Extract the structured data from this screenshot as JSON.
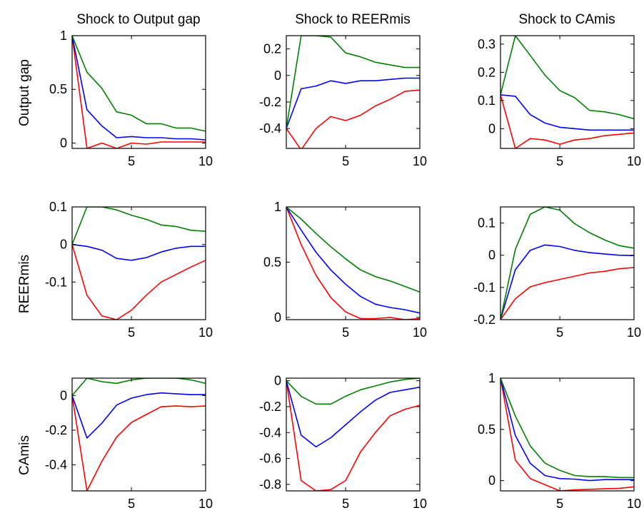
{
  "figure": {
    "column_titles": [
      "Shock to Output gap",
      "Shock to REERmis",
      "Shock to CAmis"
    ],
    "row_labels": [
      "Output gap",
      "REERmis",
      "CAmis"
    ]
  },
  "colors": {
    "lower_band": "#ff0000",
    "median": "#0000ff",
    "upper_band": "#008000",
    "axes": "#000000",
    "background": "#ffffff"
  },
  "chart_data": [
    {
      "type": "line",
      "row": "Output gap",
      "column": "Shock to Output gap",
      "x": [
        1,
        2,
        3,
        4,
        5,
        6,
        7,
        8,
        9,
        10
      ],
      "xlim": [
        1,
        10
      ],
      "xticks": [
        5,
        10
      ],
      "ylim": [
        -0.05,
        1.0
      ],
      "yticks": [
        0,
        0.5,
        1
      ],
      "ytick_labels": [
        "0",
        "0.5",
        "1"
      ],
      "series": [
        {
          "color": "#ff0000",
          "values": [
            1.0,
            -0.05,
            0.0,
            -0.05,
            0.0,
            -0.01,
            0.01,
            0.01,
            0.01,
            0.01
          ]
        },
        {
          "color": "#0000ff",
          "values": [
            1.0,
            0.31,
            0.16,
            0.05,
            0.06,
            0.05,
            0.05,
            0.04,
            0.04,
            0.03
          ]
        },
        {
          "color": "#008000",
          "values": [
            1.0,
            0.66,
            0.51,
            0.29,
            0.26,
            0.18,
            0.18,
            0.14,
            0.14,
            0.11
          ]
        }
      ]
    },
    {
      "type": "line",
      "row": "Output gap",
      "column": "Shock to REERmis",
      "x": [
        1,
        2,
        3,
        4,
        5,
        6,
        7,
        8,
        9,
        10
      ],
      "xlim": [
        1,
        10
      ],
      "xticks": [
        5,
        10
      ],
      "ylim": [
        -0.55,
        0.3
      ],
      "yticks": [
        -0.4,
        -0.2,
        0,
        0.2
      ],
      "ytick_labels": [
        "-0.4",
        "-0.2",
        "0",
        "0.2"
      ],
      "series": [
        {
          "color": "#ff0000",
          "values": [
            -0.4,
            -0.56,
            -0.4,
            -0.31,
            -0.34,
            -0.3,
            -0.23,
            -0.18,
            -0.12,
            -0.11
          ]
        },
        {
          "color": "#0000ff",
          "values": [
            -0.4,
            -0.1,
            -0.08,
            -0.04,
            -0.06,
            -0.04,
            -0.04,
            -0.03,
            -0.02,
            -0.02
          ]
        },
        {
          "color": "#008000",
          "values": [
            -0.4,
            0.3,
            0.3,
            0.29,
            0.17,
            0.14,
            0.1,
            0.08,
            0.06,
            0.06
          ]
        }
      ]
    },
    {
      "type": "line",
      "row": "Output gap",
      "column": "Shock to CAmis",
      "x": [
        1,
        2,
        3,
        4,
        5,
        6,
        7,
        8,
        9,
        10
      ],
      "xlim": [
        1,
        10
      ],
      "xticks": [
        5,
        10
      ],
      "ylim": [
        -0.07,
        0.33
      ],
      "yticks": [
        0,
        0.1,
        0.2,
        0.3
      ],
      "ytick_labels": [
        "0",
        "0.1",
        "0.2",
        "0.3"
      ],
      "series": [
        {
          "color": "#ff0000",
          "values": [
            0.12,
            -0.07,
            -0.035,
            -0.04,
            -0.055,
            -0.04,
            -0.035,
            -0.025,
            -0.02,
            -0.015
          ]
        },
        {
          "color": "#0000ff",
          "values": [
            0.12,
            0.115,
            0.05,
            0.02,
            0.005,
            0.0,
            -0.005,
            -0.005,
            -0.005,
            -0.005
          ]
        },
        {
          "color": "#008000",
          "values": [
            0.12,
            0.33,
            0.26,
            0.19,
            0.135,
            0.11,
            0.065,
            0.06,
            0.05,
            0.035
          ]
        }
      ]
    },
    {
      "type": "line",
      "row": "REERmis",
      "column": "Shock to Output gap",
      "x": [
        1,
        2,
        3,
        4,
        5,
        6,
        7,
        8,
        9,
        10
      ],
      "xlim": [
        1,
        10
      ],
      "xticks": [
        5,
        10
      ],
      "ylim": [
        -0.2,
        0.1
      ],
      "yticks": [
        -0.1,
        0,
        0.1
      ],
      "ytick_labels": [
        "-0.1",
        "0",
        "0.1"
      ],
      "series": [
        {
          "color": "#ff0000",
          "values": [
            0.0,
            -0.135,
            -0.19,
            -0.2,
            -0.175,
            -0.135,
            -0.1,
            -0.08,
            -0.06,
            -0.042
          ]
        },
        {
          "color": "#0000ff",
          "values": [
            0.0,
            -0.005,
            -0.015,
            -0.037,
            -0.042,
            -0.035,
            -0.02,
            -0.01,
            -0.005,
            -0.005
          ]
        },
        {
          "color": "#008000",
          "values": [
            0.0,
            0.1,
            0.1,
            0.092,
            0.078,
            0.067,
            0.052,
            0.048,
            0.038,
            0.035
          ]
        }
      ]
    },
    {
      "type": "line",
      "row": "REERmis",
      "column": "Shock to REERmis",
      "x": [
        1,
        2,
        3,
        4,
        5,
        6,
        7,
        8,
        9,
        10
      ],
      "xlim": [
        1,
        10
      ],
      "xticks": [
        5,
        10
      ],
      "ylim": [
        -0.02,
        1.0
      ],
      "yticks": [
        0,
        0.5,
        1
      ],
      "ytick_labels": [
        "0",
        "0.5",
        "1"
      ],
      "series": [
        {
          "color": "#ff0000",
          "values": [
            1.0,
            0.66,
            0.38,
            0.18,
            0.05,
            -0.01,
            -0.01,
            0.0,
            -0.02,
            -0.01
          ]
        },
        {
          "color": "#0000ff",
          "values": [
            1.0,
            0.79,
            0.59,
            0.43,
            0.3,
            0.19,
            0.12,
            0.09,
            0.07,
            0.04
          ]
        },
        {
          "color": "#008000",
          "values": [
            1.0,
            0.89,
            0.76,
            0.64,
            0.53,
            0.43,
            0.37,
            0.33,
            0.28,
            0.23
          ]
        }
      ]
    },
    {
      "type": "line",
      "row": "REERmis",
      "column": "Shock to CAmis",
      "x": [
        1,
        2,
        3,
        4,
        5,
        6,
        7,
        8,
        9,
        10
      ],
      "xlim": [
        1,
        10
      ],
      "xticks": [
        5,
        10
      ],
      "ylim": [
        -0.2,
        0.15
      ],
      "yticks": [
        -0.2,
        -0.1,
        0,
        0.1
      ],
      "ytick_labels": [
        "-0.2",
        "-0.1",
        "0",
        "0.1"
      ],
      "series": [
        {
          "color": "#ff0000",
          "values": [
            -0.2,
            -0.135,
            -0.098,
            -0.085,
            -0.075,
            -0.065,
            -0.055,
            -0.05,
            -0.042,
            -0.038
          ]
        },
        {
          "color": "#0000ff",
          "values": [
            -0.2,
            -0.045,
            0.015,
            0.032,
            0.027,
            0.015,
            0.008,
            0.004,
            0.0,
            -0.001
          ]
        },
        {
          "color": "#008000",
          "values": [
            -0.2,
            0.018,
            0.127,
            0.15,
            0.14,
            0.098,
            0.07,
            0.048,
            0.03,
            0.022
          ]
        }
      ]
    },
    {
      "type": "line",
      "row": "CAmis",
      "column": "Shock to Output gap",
      "x": [
        1,
        2,
        3,
        4,
        5,
        6,
        7,
        8,
        9,
        10
      ],
      "xlim": [
        1,
        10
      ],
      "xticks": [
        5,
        10
      ],
      "ylim": [
        -0.55,
        0.1
      ],
      "yticks": [
        -0.4,
        -0.2,
        0
      ],
      "ytick_labels": [
        "-0.4",
        "-0.2",
        "0"
      ],
      "series": [
        {
          "color": "#ff0000",
          "values": [
            0.0,
            -0.55,
            -0.38,
            -0.24,
            -0.155,
            -0.11,
            -0.065,
            -0.06,
            -0.065,
            -0.06
          ]
        },
        {
          "color": "#0000ff",
          "values": [
            0.0,
            -0.245,
            -0.16,
            -0.055,
            -0.015,
            0.005,
            0.015,
            0.01,
            0.005,
            0.005
          ]
        },
        {
          "color": "#008000",
          "values": [
            0.0,
            0.1,
            0.08,
            0.07,
            0.09,
            0.1,
            0.1,
            0.1,
            0.09,
            0.07
          ]
        }
      ]
    },
    {
      "type": "line",
      "row": "CAmis",
      "column": "Shock to REERmis",
      "x": [
        1,
        2,
        3,
        4,
        5,
        6,
        7,
        8,
        9,
        10
      ],
      "xlim": [
        1,
        10
      ],
      "xticks": [
        5,
        10
      ],
      "ylim": [
        -0.85,
        0.02
      ],
      "yticks": [
        -0.8,
        -0.6,
        -0.4,
        -0.2,
        0
      ],
      "ytick_labels": [
        "-0.8",
        "-0.6",
        "-0.4",
        "-0.2",
        "0"
      ],
      "series": [
        {
          "color": "#ff0000",
          "values": [
            0.0,
            -0.77,
            -0.85,
            -0.84,
            -0.77,
            -0.55,
            -0.4,
            -0.27,
            -0.22,
            -0.19
          ]
        },
        {
          "color": "#0000ff",
          "values": [
            0.0,
            -0.42,
            -0.51,
            -0.44,
            -0.34,
            -0.24,
            -0.15,
            -0.09,
            -0.07,
            -0.05
          ]
        },
        {
          "color": "#008000",
          "values": [
            0.0,
            -0.12,
            -0.18,
            -0.18,
            -0.12,
            -0.07,
            -0.04,
            -0.01,
            0.01,
            0.02
          ]
        }
      ]
    },
    {
      "type": "line",
      "row": "CAmis",
      "column": "Shock to CAmis",
      "x": [
        1,
        2,
        3,
        4,
        5,
        6,
        7,
        8,
        9,
        10
      ],
      "xlim": [
        1,
        10
      ],
      "xticks": [
        5,
        10
      ],
      "ylim": [
        -0.1,
        1.0
      ],
      "yticks": [
        0,
        0.5,
        1
      ],
      "ytick_labels": [
        "0",
        "0.5",
        "1"
      ],
      "series": [
        {
          "color": "#ff0000",
          "values": [
            1.0,
            0.2,
            0.02,
            -0.04,
            -0.1,
            -0.09,
            -0.085,
            -0.08,
            -0.075,
            -0.06
          ]
        },
        {
          "color": "#0000ff",
          "values": [
            1.0,
            0.44,
            0.17,
            0.05,
            0.02,
            0.015,
            0.0,
            0.01,
            0.01,
            0.01
          ]
        },
        {
          "color": "#008000",
          "values": [
            1.0,
            0.63,
            0.34,
            0.17,
            0.1,
            0.05,
            0.04,
            0.04,
            0.03,
            0.03
          ]
        }
      ]
    }
  ]
}
